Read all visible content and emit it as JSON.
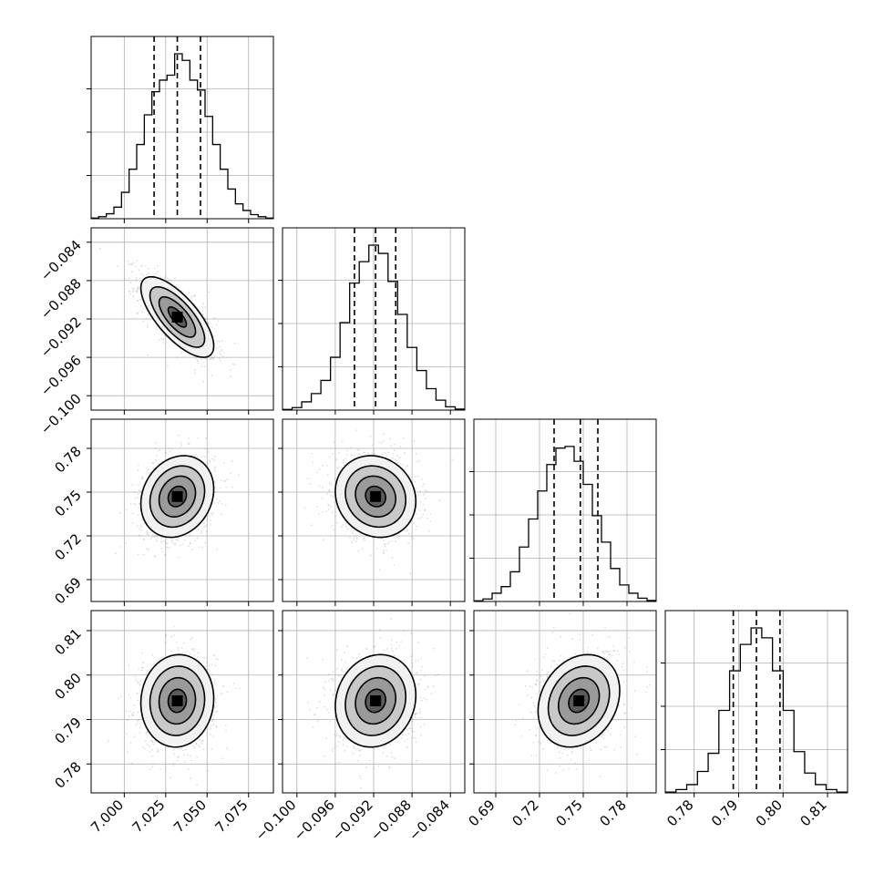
{
  "chart_data": {
    "type": "corner",
    "params": [
      {
        "id": "p0",
        "range": [
          6.98,
          7.09
        ],
        "quantiles": [
          7.018,
          7.032,
          7.046
        ],
        "mean": 7.032,
        "sd": 0.011,
        "ticks": [
          7.0,
          7.025,
          7.05,
          7.075
        ],
        "tick_labels": [
          "7.000",
          "7.025",
          "7.050",
          "7.075"
        ]
      },
      {
        "id": "p1",
        "range": [
          -0.1015,
          -0.0825
        ],
        "quantiles": [
          -0.094,
          -0.0918,
          -0.0897
        ],
        "mean": -0.0918,
        "sd": 0.0021,
        "ticks": [
          -0.1,
          -0.096,
          -0.092,
          -0.088,
          -0.084
        ],
        "tick_labels": [
          "−0.100",
          "−0.096",
          "−0.092",
          "−0.088",
          "−0.084"
        ]
      },
      {
        "id": "p2",
        "range": [
          0.675,
          0.8
        ],
        "quantiles": [
          0.73,
          0.748,
          0.76
        ],
        "mean": 0.747,
        "sd": 0.014,
        "ticks": [
          0.69,
          0.72,
          0.75,
          0.78
        ],
        "tick_labels": [
          "0.69",
          "0.72",
          "0.75",
          "0.78"
        ]
      },
      {
        "id": "p3",
        "range": [
          0.7735,
          0.8145
        ],
        "quantiles": [
          0.7888,
          0.794,
          0.7993
        ],
        "mean": 0.7942,
        "sd": 0.0052,
        "ticks": [
          0.78,
          0.79,
          0.8,
          0.81
        ],
        "tick_labels": [
          "0.78",
          "0.79",
          "0.80",
          "0.81"
        ]
      }
    ],
    "hist_counts": [
      [
        0.004,
        0.012,
        0.03,
        0.07,
        0.16,
        0.3,
        0.45,
        0.63,
        0.77,
        0.84,
        0.87,
        1.0,
        0.96,
        0.84,
        0.78,
        0.62,
        0.45,
        0.3,
        0.18,
        0.09,
        0.05,
        0.025,
        0.012,
        0.004
      ],
      [
        0.004,
        0.015,
        0.05,
        0.1,
        0.18,
        0.32,
        0.53,
        0.77,
        0.9,
        1.0,
        0.95,
        0.78,
        0.58,
        0.38,
        0.24,
        0.13,
        0.06,
        0.02,
        0.006
      ],
      [
        0.004,
        0.015,
        0.05,
        0.09,
        0.18,
        0.33,
        0.5,
        0.67,
        0.83,
        0.93,
        0.94,
        0.85,
        0.71,
        0.52,
        0.36,
        0.2,
        0.1,
        0.05,
        0.02,
        0.006
      ],
      [
        0.005,
        0.02,
        0.05,
        0.13,
        0.24,
        0.5,
        0.74,
        0.9,
        1.0,
        0.94,
        0.74,
        0.5,
        0.25,
        0.12,
        0.05,
        0.02,
        0.005
      ]
    ],
    "correlations": {
      "1,0": -0.72,
      "2,0": 0.18,
      "2,1": -0.12,
      "3,0": 0.05,
      "3,1": 0.12,
      "3,2": 0.22
    },
    "grid": true,
    "colors": {
      "line": "#000000",
      "grid": "#b0b0b0",
      "points": "#808080"
    }
  }
}
